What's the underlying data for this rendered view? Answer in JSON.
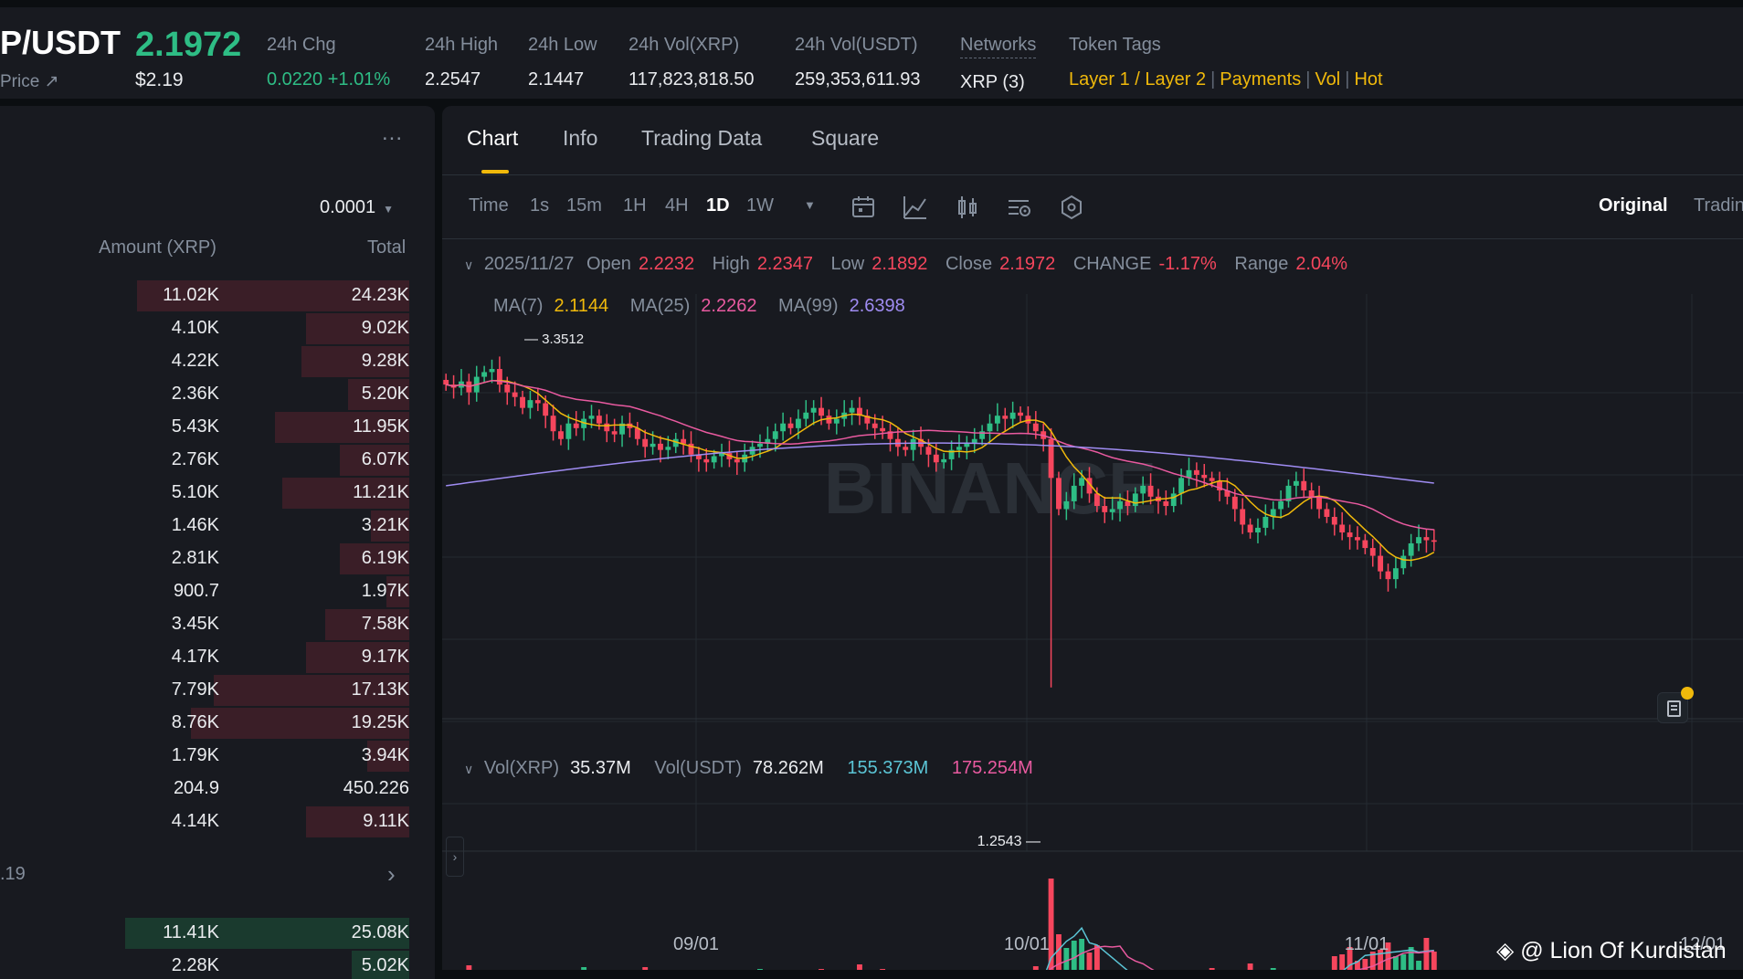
{
  "header": {
    "pair": "P/USDT",
    "pair_sub": "Price ↗",
    "last_price": "2.1972",
    "last_price_usd": "$2.19",
    "stats": [
      {
        "label": "24h Chg",
        "value": "0.0220 +1.01%"
      },
      {
        "label": "24h High",
        "value": "2.2547"
      },
      {
        "label": "24h Low",
        "value": "2.1447"
      },
      {
        "label": "24h Vol(XRP)",
        "value": "117,823,818.50"
      },
      {
        "label": "24h Vol(USDT)",
        "value": "259,353,611.93"
      },
      {
        "label": "Networks",
        "value": "XRP (3)"
      }
    ],
    "token_tags_label": "Token Tags",
    "token_tags": [
      "Layer 1 / Layer 2",
      "Payments",
      "Vol",
      "Hot"
    ]
  },
  "order_book": {
    "more": "...",
    "precision": "0.0001",
    "amount_header": "Amount (XRP)",
    "total_header": "Total",
    "asks": [
      {
        "amount": "11.02K",
        "total": "24.23K",
        "depth": 0.71
      },
      {
        "amount": "4.10K",
        "total": "9.02K",
        "depth": 0.27
      },
      {
        "amount": "4.22K",
        "total": "9.28K",
        "depth": 0.28
      },
      {
        "amount": "2.36K",
        "total": "5.20K",
        "depth": 0.16
      },
      {
        "amount": "5.43K",
        "total": "11.95K",
        "depth": 0.35
      },
      {
        "amount": "2.76K",
        "total": "6.07K",
        "depth": 0.18
      },
      {
        "amount": "5.10K",
        "total": "11.21K",
        "depth": 0.33
      },
      {
        "amount": "1.46K",
        "total": "3.21K",
        "depth": 0.1
      },
      {
        "amount": "2.81K",
        "total": "6.19K",
        "depth": 0.18
      },
      {
        "amount": "900.7",
        "total": "1.97K",
        "depth": 0.06
      },
      {
        "amount": "3.45K",
        "total": "7.58K",
        "depth": 0.22
      },
      {
        "amount": "4.17K",
        "total": "9.17K",
        "depth": 0.27
      },
      {
        "amount": "7.79K",
        "total": "17.13K",
        "depth": 0.51
      },
      {
        "amount": "8.76K",
        "total": "19.25K",
        "depth": 0.57
      },
      {
        "amount": "1.79K",
        "total": "3.94K",
        "depth": 0.11
      },
      {
        "amount": "204.9",
        "total": "450.226",
        "depth": 0.0
      },
      {
        "amount": "4.14K",
        "total": "9.11K",
        "depth": 0.27
      }
    ],
    "mid_price": ".19",
    "bids": [
      {
        "amount": "11.41K",
        "total": "25.08K",
        "depth": 0.74
      },
      {
        "amount": "2.28K",
        "total": "5.02K",
        "depth": 0.15
      }
    ]
  },
  "panel": {
    "tabs": [
      "Chart",
      "Info",
      "Trading Data",
      "Square"
    ],
    "timeframes": [
      "Time",
      "1s",
      "15m",
      "1H",
      "4H",
      "1D",
      "1W"
    ],
    "active_timeframe": "1D",
    "view_options": [
      "Original",
      "Tradin"
    ],
    "ohlc": {
      "date": "2025/11/27",
      "open_label": "Open",
      "open": "2.2232",
      "high_label": "High",
      "high": "2.2347",
      "low_label": "Low",
      "low": "2.1892",
      "close_label": "Close",
      "close": "2.1972",
      "change_label": "CHANGE",
      "change": "-1.17%",
      "range_label": "Range",
      "range": "2.04%"
    },
    "ma": [
      {
        "label": "MA(7)",
        "value": "2.1144",
        "color": "#f0b90b"
      },
      {
        "label": "MA(25)",
        "value": "2.2262",
        "color": "#e95aa0"
      },
      {
        "label": "MA(99)",
        "value": "2.6398",
        "color": "#9f8cf2"
      }
    ],
    "volume": {
      "vol_xrp_label": "Vol(XRP)",
      "vol_xrp": "35.37M",
      "vol_usdt_label": "Vol(USDT)",
      "vol_usdt": "78.262M",
      "ma1": "155.373M",
      "ma2": "175.254M"
    },
    "watermark": "@ Lion Of Kurdistan",
    "brand_watermark": "BINANCE"
  },
  "chart_data": {
    "type": "candlestick",
    "x_labels": [
      "09/01",
      "10/01",
      "11/01",
      "12/01"
    ],
    "annotations": [
      {
        "label": "3.3512",
        "kind": "max"
      },
      {
        "label": "1.2543",
        "kind": "min"
      }
    ],
    "close_series": [
      3.2,
      3.18,
      3.22,
      3.15,
      3.25,
      3.28,
      3.3,
      3.2,
      3.15,
      3.12,
      3.05,
      3.1,
      3.08,
      3.0,
      2.9,
      2.85,
      2.95,
      2.92,
      2.98,
      3.0,
      2.95,
      2.9,
      2.88,
      2.95,
      2.92,
      2.85,
      2.8,
      2.82,
      2.78,
      2.8,
      2.85,
      2.82,
      2.75,
      2.72,
      2.7,
      2.74,
      2.76,
      2.72,
      2.7,
      2.75,
      2.8,
      2.82,
      2.85,
      2.9,
      2.95,
      2.92,
      2.98,
      3.02,
      3.05,
      3.0,
      2.95,
      2.98,
      3.02,
      3.05,
      3.0,
      2.95,
      2.92,
      2.9,
      2.85,
      2.8,
      2.78,
      2.85,
      2.8,
      2.75,
      2.7,
      2.72,
      2.78,
      2.8,
      2.82,
      2.85,
      2.9,
      2.95,
      3.0,
      2.98,
      3.02,
      3.0,
      2.95,
      2.9,
      2.85,
      2.6,
      2.4,
      2.45,
      2.55,
      2.6,
      2.5,
      2.42,
      2.38,
      2.4,
      2.45,
      2.42,
      2.5,
      2.55,
      2.48,
      2.45,
      2.42,
      2.5,
      2.6,
      2.65,
      2.62,
      2.6,
      2.58,
      2.52,
      2.48,
      2.4,
      2.3,
      2.25,
      2.28,
      2.35,
      2.4,
      2.45,
      2.55,
      2.58,
      2.52,
      2.48,
      2.4,
      2.35,
      2.3,
      2.25,
      2.22,
      2.2,
      2.15,
      2.1,
      2.0,
      1.95,
      2.02,
      2.1,
      2.18,
      2.22,
      2.2,
      2.19
    ],
    "ma7": 2.1144,
    "ma25": 2.2262,
    "ma99": 2.6398
  }
}
